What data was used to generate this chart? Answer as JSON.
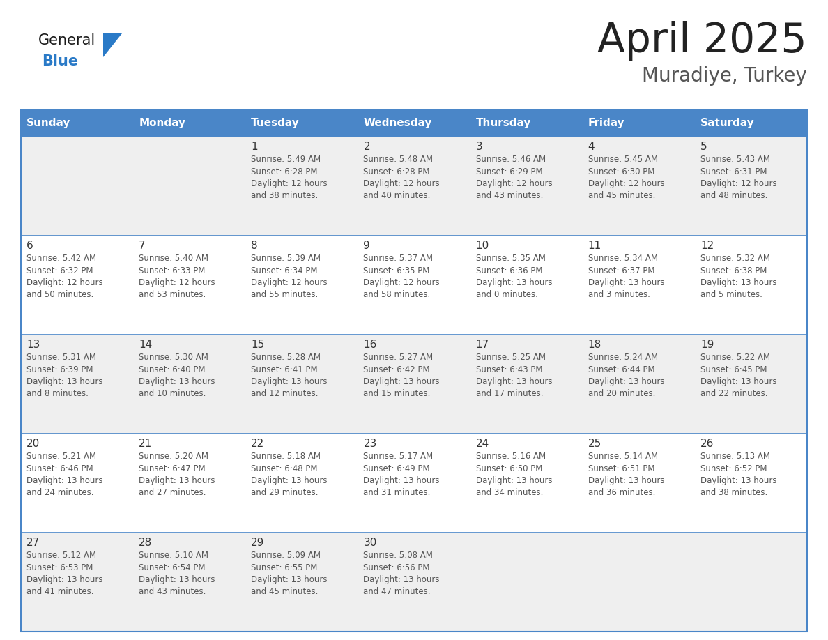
{
  "title": "April 2025",
  "subtitle": "Muradiye, Turkey",
  "days_of_week": [
    "Sunday",
    "Monday",
    "Tuesday",
    "Wednesday",
    "Thursday",
    "Friday",
    "Saturday"
  ],
  "header_bg": "#4A86C8",
  "header_text": "#FFFFFF",
  "cell_bg_odd": "#EFEFEF",
  "cell_bg_even": "#FFFFFF",
  "cell_border": "#4A86C8",
  "day_num_color": "#333333",
  "text_color": "#555555",
  "title_color": "#222222",
  "subtitle_color": "#555555",
  "logo_general_color": "#1a1a1a",
  "logo_blue_color": "#2A7AC7",
  "weeks": [
    {
      "days": [
        {
          "date": "",
          "info": ""
        },
        {
          "date": "",
          "info": ""
        },
        {
          "date": "1",
          "info": "Sunrise: 5:49 AM\nSunset: 6:28 PM\nDaylight: 12 hours\nand 38 minutes."
        },
        {
          "date": "2",
          "info": "Sunrise: 5:48 AM\nSunset: 6:28 PM\nDaylight: 12 hours\nand 40 minutes."
        },
        {
          "date": "3",
          "info": "Sunrise: 5:46 AM\nSunset: 6:29 PM\nDaylight: 12 hours\nand 43 minutes."
        },
        {
          "date": "4",
          "info": "Sunrise: 5:45 AM\nSunset: 6:30 PM\nDaylight: 12 hours\nand 45 minutes."
        },
        {
          "date": "5",
          "info": "Sunrise: 5:43 AM\nSunset: 6:31 PM\nDaylight: 12 hours\nand 48 minutes."
        }
      ]
    },
    {
      "days": [
        {
          "date": "6",
          "info": "Sunrise: 5:42 AM\nSunset: 6:32 PM\nDaylight: 12 hours\nand 50 minutes."
        },
        {
          "date": "7",
          "info": "Sunrise: 5:40 AM\nSunset: 6:33 PM\nDaylight: 12 hours\nand 53 minutes."
        },
        {
          "date": "8",
          "info": "Sunrise: 5:39 AM\nSunset: 6:34 PM\nDaylight: 12 hours\nand 55 minutes."
        },
        {
          "date": "9",
          "info": "Sunrise: 5:37 AM\nSunset: 6:35 PM\nDaylight: 12 hours\nand 58 minutes."
        },
        {
          "date": "10",
          "info": "Sunrise: 5:35 AM\nSunset: 6:36 PM\nDaylight: 13 hours\nand 0 minutes."
        },
        {
          "date": "11",
          "info": "Sunrise: 5:34 AM\nSunset: 6:37 PM\nDaylight: 13 hours\nand 3 minutes."
        },
        {
          "date": "12",
          "info": "Sunrise: 5:32 AM\nSunset: 6:38 PM\nDaylight: 13 hours\nand 5 minutes."
        }
      ]
    },
    {
      "days": [
        {
          "date": "13",
          "info": "Sunrise: 5:31 AM\nSunset: 6:39 PM\nDaylight: 13 hours\nand 8 minutes."
        },
        {
          "date": "14",
          "info": "Sunrise: 5:30 AM\nSunset: 6:40 PM\nDaylight: 13 hours\nand 10 minutes."
        },
        {
          "date": "15",
          "info": "Sunrise: 5:28 AM\nSunset: 6:41 PM\nDaylight: 13 hours\nand 12 minutes."
        },
        {
          "date": "16",
          "info": "Sunrise: 5:27 AM\nSunset: 6:42 PM\nDaylight: 13 hours\nand 15 minutes."
        },
        {
          "date": "17",
          "info": "Sunrise: 5:25 AM\nSunset: 6:43 PM\nDaylight: 13 hours\nand 17 minutes."
        },
        {
          "date": "18",
          "info": "Sunrise: 5:24 AM\nSunset: 6:44 PM\nDaylight: 13 hours\nand 20 minutes."
        },
        {
          "date": "19",
          "info": "Sunrise: 5:22 AM\nSunset: 6:45 PM\nDaylight: 13 hours\nand 22 minutes."
        }
      ]
    },
    {
      "days": [
        {
          "date": "20",
          "info": "Sunrise: 5:21 AM\nSunset: 6:46 PM\nDaylight: 13 hours\nand 24 minutes."
        },
        {
          "date": "21",
          "info": "Sunrise: 5:20 AM\nSunset: 6:47 PM\nDaylight: 13 hours\nand 27 minutes."
        },
        {
          "date": "22",
          "info": "Sunrise: 5:18 AM\nSunset: 6:48 PM\nDaylight: 13 hours\nand 29 minutes."
        },
        {
          "date": "23",
          "info": "Sunrise: 5:17 AM\nSunset: 6:49 PM\nDaylight: 13 hours\nand 31 minutes."
        },
        {
          "date": "24",
          "info": "Sunrise: 5:16 AM\nSunset: 6:50 PM\nDaylight: 13 hours\nand 34 minutes."
        },
        {
          "date": "25",
          "info": "Sunrise: 5:14 AM\nSunset: 6:51 PM\nDaylight: 13 hours\nand 36 minutes."
        },
        {
          "date": "26",
          "info": "Sunrise: 5:13 AM\nSunset: 6:52 PM\nDaylight: 13 hours\nand 38 minutes."
        }
      ]
    },
    {
      "days": [
        {
          "date": "27",
          "info": "Sunrise: 5:12 AM\nSunset: 6:53 PM\nDaylight: 13 hours\nand 41 minutes."
        },
        {
          "date": "28",
          "info": "Sunrise: 5:10 AM\nSunset: 6:54 PM\nDaylight: 13 hours\nand 43 minutes."
        },
        {
          "date": "29",
          "info": "Sunrise: 5:09 AM\nSunset: 6:55 PM\nDaylight: 13 hours\nand 45 minutes."
        },
        {
          "date": "30",
          "info": "Sunrise: 5:08 AM\nSunset: 6:56 PM\nDaylight: 13 hours\nand 47 minutes."
        },
        {
          "date": "",
          "info": ""
        },
        {
          "date": "",
          "info": ""
        },
        {
          "date": "",
          "info": ""
        }
      ]
    }
  ]
}
